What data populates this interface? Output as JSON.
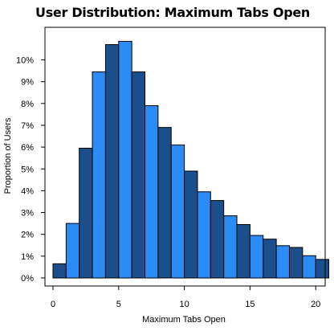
{
  "chart_data": {
    "type": "bar",
    "title": "User Distribution: Maximum Tabs Open",
    "xlabel": "Maximum Tabs Open",
    "ylabel": "Proportion of Users",
    "x_ticks": [
      0,
      5,
      10,
      15,
      20
    ],
    "y_ticks": [
      "0%",
      "1%",
      "2%",
      "3%",
      "4%",
      "5%",
      "6%",
      "7%",
      "8%",
      "9%",
      "10%"
    ],
    "xlim": [
      -0.5,
      21
    ],
    "ylim": [
      0,
      11
    ],
    "bins": [
      0,
      1,
      2,
      3,
      4,
      5,
      6,
      7,
      8,
      9,
      10,
      11,
      12,
      13,
      14,
      15,
      16,
      17,
      18,
      19,
      20
    ],
    "values": [
      0.65,
      2.5,
      5.95,
      9.45,
      10.7,
      10.85,
      9.45,
      7.9,
      6.9,
      6.1,
      4.9,
      3.95,
      3.55,
      2.85,
      2.45,
      1.95,
      1.78,
      1.48,
      1.4,
      1.02,
      0.85
    ],
    "colors": {
      "dark": "#1b4f8c",
      "light": "#2b8cf5",
      "stroke": "#000000"
    },
    "grid": false
  }
}
